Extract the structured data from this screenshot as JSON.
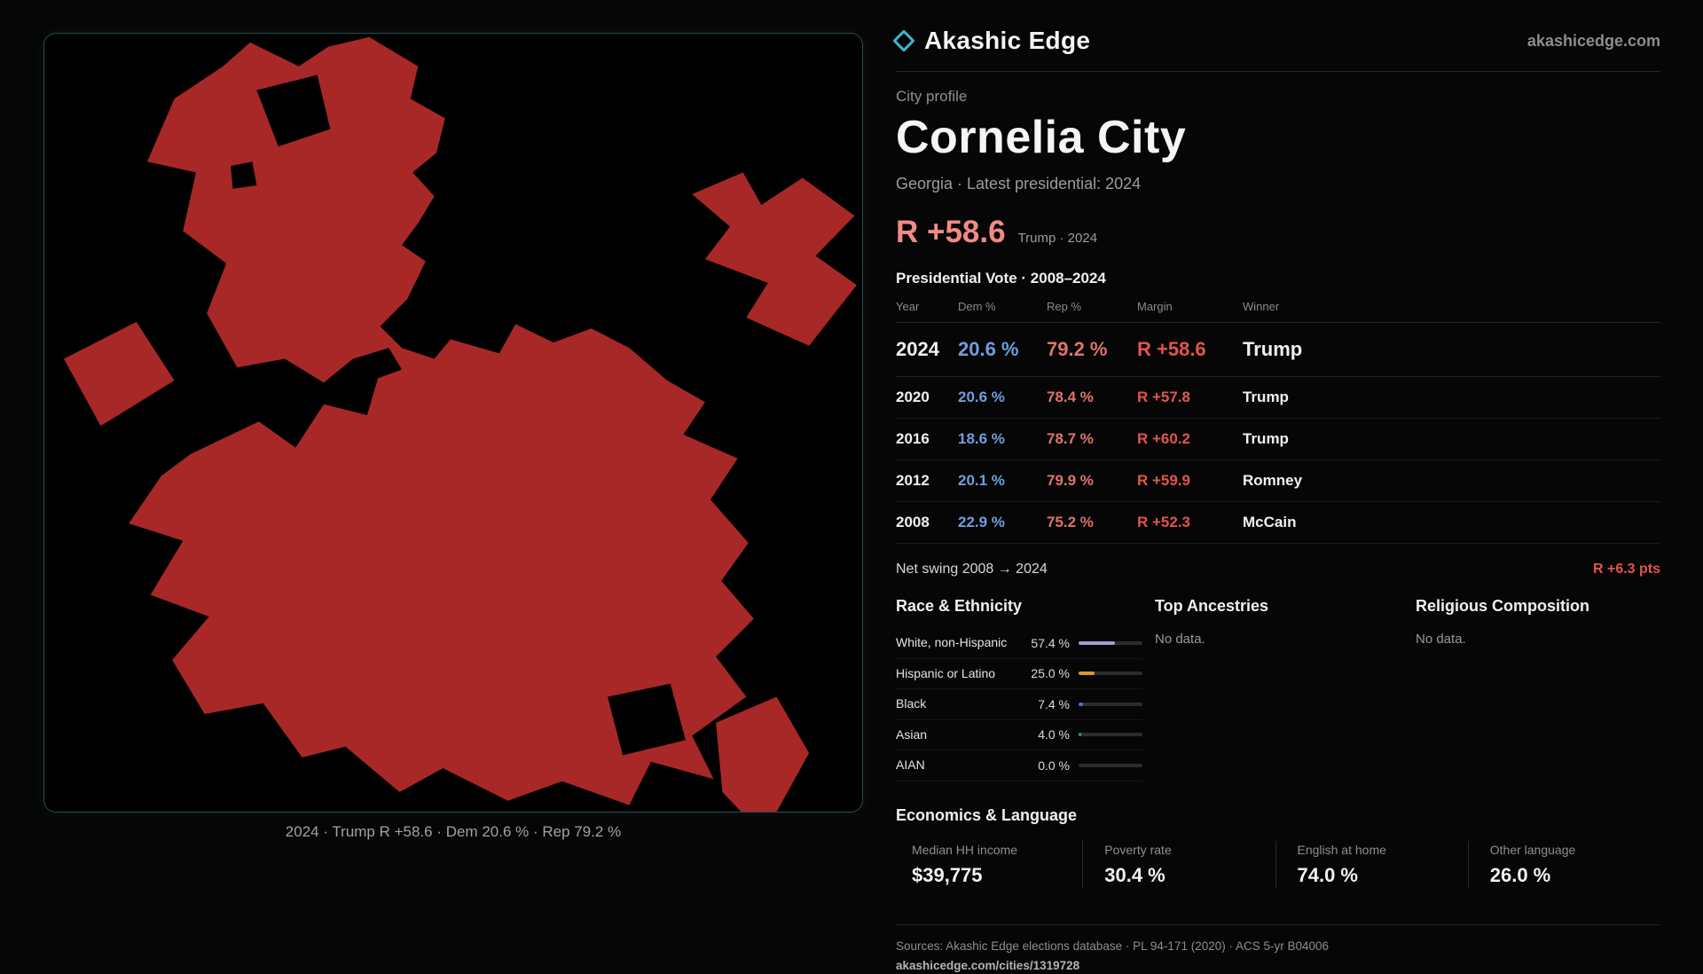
{
  "colors": {
    "background": "#060606",
    "panel_border": "#58a8b2",
    "map_fill": "#a82827",
    "accent_red": "#f28a85",
    "margin_red": "#e2544f",
    "dem_blue": "#6f9ede",
    "rep_red": "#e0736d"
  },
  "header": {
    "brand": "Akashic Edge",
    "domain": "akashicedge.com"
  },
  "profile": {
    "kicker": "City profile",
    "city": "Cornelia City",
    "subtitle": "Georgia · Latest presidential: 2024",
    "headline_margin": "R +58.6",
    "headline_note": "Trump · 2024"
  },
  "vote_table": {
    "title": "Presidential Vote · 2008–2024",
    "columns": {
      "year": "Year",
      "dem": "Dem %",
      "rep": "Rep %",
      "margin": "Margin",
      "winner": "Winner"
    },
    "rows": [
      {
        "year": "2024",
        "dem": "20.6 %",
        "rep": "79.2 %",
        "margin": "R +58.6",
        "winner": "Trump"
      },
      {
        "year": "2020",
        "dem": "20.6 %",
        "rep": "78.4 %",
        "margin": "R +57.8",
        "winner": "Trump"
      },
      {
        "year": "2016",
        "dem": "18.6 %",
        "rep": "78.7 %",
        "margin": "R +60.2",
        "winner": "Trump"
      },
      {
        "year": "2012",
        "dem": "20.1 %",
        "rep": "79.9 %",
        "margin": "R +59.9",
        "winner": "Romney"
      },
      {
        "year": "2008",
        "dem": "22.9 %",
        "rep": "75.2 %",
        "margin": "R +52.3",
        "winner": "McCain"
      }
    ],
    "net_swing_label": "Net swing 2008 → 2024",
    "net_swing_value": "R +6.3 pts"
  },
  "demographics": {
    "race_title": "Race & Ethnicity",
    "race_rows": [
      {
        "label": "White, non-Hispanic",
        "value": "57.4 %",
        "pct": 57.4,
        "bar_color": "#a49ed0"
      },
      {
        "label": "Hispanic or Latino",
        "value": "25.0 %",
        "pct": 25.0,
        "bar_color": "#d99a2e"
      },
      {
        "label": "Black",
        "value": "7.4 %",
        "pct": 7.4,
        "bar_color": "#4b6fd2"
      },
      {
        "label": "Asian",
        "value": "4.0 %",
        "pct": 4.0,
        "bar_color": "#3e9e66"
      },
      {
        "label": "AIAN",
        "value": "0.0 %",
        "pct": 0.0,
        "bar_color": "#777777"
      }
    ],
    "ancestries_title": "Top Ancestries",
    "ancestries_empty": "No data.",
    "religion_title": "Religious Composition",
    "religion_empty": "No data."
  },
  "economics": {
    "title": "Economics & Language",
    "stats": [
      {
        "label": "Median HH income",
        "value": "$39,775"
      },
      {
        "label": "Poverty rate",
        "value": "30.4 %"
      },
      {
        "label": "English at home",
        "value": "74.0 %"
      },
      {
        "label": "Other language",
        "value": "26.0 %"
      }
    ]
  },
  "map": {
    "caption": "2024 · Trump R +58.6 · Dem 20.6 % · Rep 79.2 %"
  },
  "footer": {
    "sources": "Sources: Akashic Edge elections database · PL 94-171 (2020) · ACS 5-yr B04006",
    "permalink": "akashicedge.com/cities/1319728"
  }
}
